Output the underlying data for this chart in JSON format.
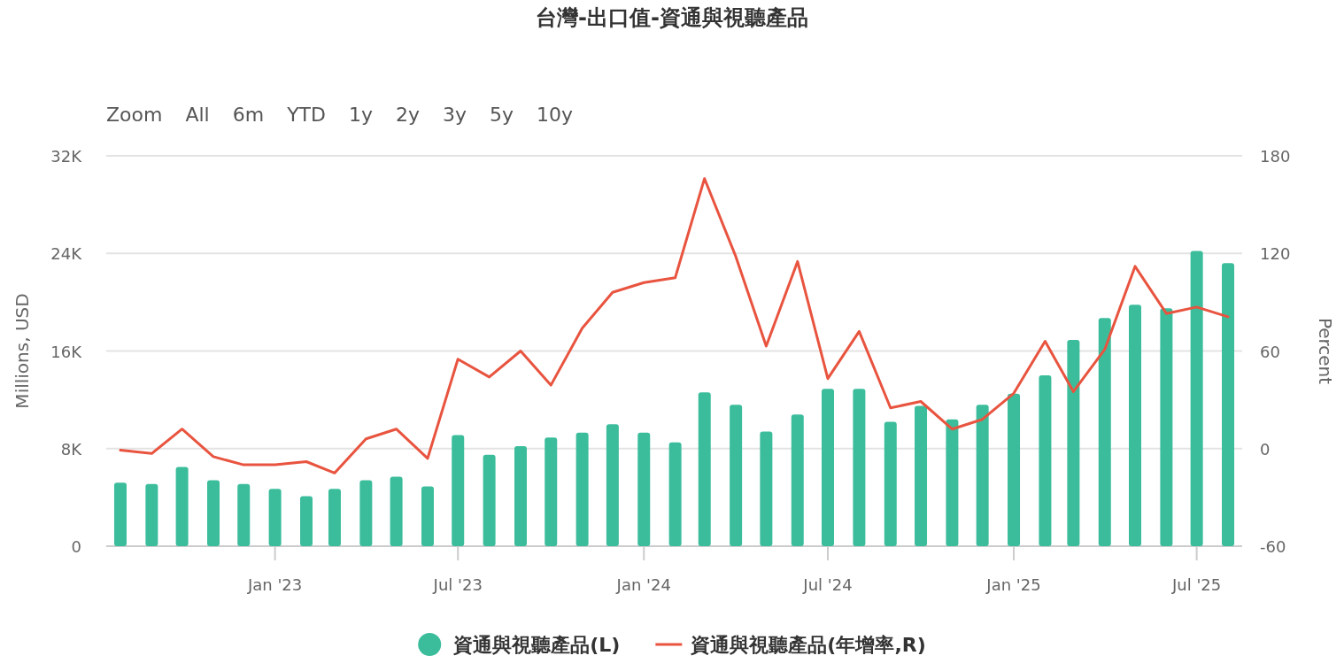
{
  "chart_data": {
    "type": "bar",
    "title": "台灣-出口值-資通與視聽產品",
    "annotations": [
      "Zoom",
      "All",
      "6m",
      "YTD",
      "1y",
      "2y",
      "3y",
      "5y",
      "10y"
    ],
    "x": [
      "2022-08",
      "2022-09",
      "2022-10",
      "2022-11",
      "2022-12",
      "2023-01",
      "2023-02",
      "2023-03",
      "2023-04",
      "2023-05",
      "2023-06",
      "2023-07",
      "2023-08",
      "2023-09",
      "2023-10",
      "2023-11",
      "2023-12",
      "2024-01",
      "2024-02",
      "2024-03",
      "2024-04",
      "2024-05",
      "2024-06",
      "2024-07",
      "2024-08",
      "2024-09",
      "2024-10",
      "2024-11",
      "2024-12",
      "2025-01",
      "2025-02",
      "2025-03",
      "2025-04",
      "2025-05",
      "2025-06",
      "2025-07",
      "2025-08"
    ],
    "xlim": [
      "2022-07-18",
      "2025-08-15"
    ],
    "xticks": [
      {
        "value": "2023-01",
        "label": "Jan '23"
      },
      {
        "value": "2023-07",
        "label": "Jul '23"
      },
      {
        "value": "2024-01",
        "label": "Jan '24"
      },
      {
        "value": "2024-07",
        "label": "Jul '24"
      },
      {
        "value": "2025-01",
        "label": "Jan '25"
      },
      {
        "value": "2025-07",
        "label": "Jul '25"
      }
    ],
    "ylabel": "Millions, USD",
    "y2label": "Percent",
    "ylim": [
      0,
      32000
    ],
    "yticks": [
      0,
      {
        "value": 8000,
        "label": "8K"
      },
      {
        "value": 16000,
        "label": "16K"
      },
      {
        "value": 24000,
        "label": "24K"
      },
      {
        "value": 32000,
        "label": "32K"
      }
    ],
    "y2lim": [
      -60,
      180
    ],
    "y2ticks": [
      -60,
      0,
      60,
      120,
      180
    ],
    "grid": "y",
    "legend": "bottom",
    "series": [
      {
        "name": "資通與視聽產品(L)",
        "color": "#3bbd9c",
        "values": [
          5200,
          5100,
          6500,
          5400,
          5100,
          4700,
          4100,
          4700,
          5400,
          5700,
          4900,
          9100,
          7500,
          8200,
          8900,
          9300,
          10000,
          9300,
          8500,
          12600,
          11600,
          9400,
          10800,
          12900,
          12900,
          10200,
          11500,
          10400,
          11600,
          12500,
          14000,
          16900,
          18700,
          19800,
          19500,
          24200,
          23200
        ]
      },
      {
        "name": "資通與視聽產品(年增率,R)",
        "type": "line",
        "axis": "y2",
        "color": "#e8543f",
        "values": [
          -1,
          -3,
          12,
          -5,
          -10,
          -10,
          -8,
          -15,
          6,
          12,
          -6,
          55,
          44,
          60,
          39,
          74,
          96,
          102,
          105,
          166,
          118,
          63,
          115,
          43,
          72,
          25,
          29,
          12,
          18,
          34,
          66,
          35,
          61,
          112,
          83,
          87,
          81
        ]
      }
    ]
  }
}
